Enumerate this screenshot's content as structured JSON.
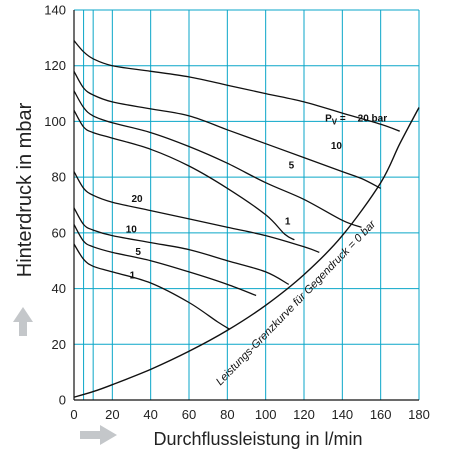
{
  "chart_data": {
    "type": "line",
    "xlabel": "Durchflussleistung in l/min",
    "ylabel": "Hinterdruck in mbar",
    "xlim": [
      0,
      180
    ],
    "ylim": [
      0,
      140
    ],
    "x_ticks": [
      "0",
      "20",
      "40",
      "60",
      "80",
      "100",
      "120",
      "140",
      "160",
      "180"
    ],
    "y_ticks": [
      "0",
      "20",
      "40",
      "60",
      "80",
      "100",
      "120",
      "140"
    ],
    "grid": true,
    "grid_color": "#0aa6c8",
    "line_color": "#111111",
    "arrow_color": "#c4c7ca",
    "boundary": {
      "label": "Leistungs-Grenzkurve für Gegendruck = 0 bar",
      "points": [
        [
          0,
          1
        ],
        [
          10,
          3
        ],
        [
          20,
          5.5
        ],
        [
          40,
          11
        ],
        [
          60,
          17.5
        ],
        [
          80,
          25
        ],
        [
          100,
          34
        ],
        [
          120,
          45
        ],
        [
          140,
          59
        ],
        [
          160,
          78
        ],
        [
          170,
          92
        ],
        [
          180,
          105
        ]
      ]
    },
    "series": [
      {
        "group": "upper",
        "points": [
          [
            0,
            129
          ],
          [
            5,
            125
          ],
          [
            10,
            122.5
          ],
          [
            20,
            120
          ],
          [
            40,
            118
          ],
          [
            60,
            116
          ],
          [
            80,
            113
          ],
          [
            100,
            110
          ],
          [
            120,
            107
          ],
          [
            140,
            103
          ],
          [
            160,
            99
          ],
          [
            170,
            96.5
          ]
        ]
      },
      {
        "group": "upper",
        "points": [
          [
            0,
            118
          ],
          [
            5,
            112
          ],
          [
            10,
            109.5
          ],
          [
            20,
            107
          ],
          [
            40,
            104.5
          ],
          [
            60,
            102
          ],
          [
            80,
            97
          ],
          [
            100,
            92
          ],
          [
            120,
            87
          ],
          [
            140,
            82
          ],
          [
            150,
            79.5
          ],
          [
            160,
            76
          ]
        ]
      },
      {
        "group": "upper",
        "points": [
          [
            0,
            111
          ],
          [
            5,
            105
          ],
          [
            10,
            102
          ],
          [
            20,
            99.5
          ],
          [
            40,
            96
          ],
          [
            60,
            91
          ],
          [
            80,
            85
          ],
          [
            100,
            78
          ],
          [
            120,
            72
          ],
          [
            140,
            64.5
          ],
          [
            150,
            62
          ]
        ]
      },
      {
        "group": "upper",
        "points": [
          [
            0,
            104
          ],
          [
            5,
            98
          ],
          [
            10,
            96
          ],
          [
            20,
            94
          ],
          [
            40,
            90
          ],
          [
            60,
            84
          ],
          [
            80,
            76
          ],
          [
            100,
            66.5
          ],
          [
            110,
            59.5
          ],
          [
            115,
            57.5
          ]
        ]
      },
      {
        "group": "lower",
        "points": [
          [
            0,
            82
          ],
          [
            5,
            76
          ],
          [
            10,
            73.5
          ],
          [
            20,
            71
          ],
          [
            40,
            68
          ],
          [
            60,
            65
          ],
          [
            80,
            62
          ],
          [
            100,
            59
          ],
          [
            120,
            55
          ],
          [
            128,
            53
          ]
        ]
      },
      {
        "group": "lower",
        "points": [
          [
            0,
            69
          ],
          [
            5,
            63
          ],
          [
            10,
            61
          ],
          [
            20,
            59
          ],
          [
            40,
            56.5
          ],
          [
            60,
            54
          ],
          [
            80,
            50
          ],
          [
            100,
            46
          ],
          [
            112,
            41.5
          ]
        ]
      },
      {
        "group": "lower",
        "points": [
          [
            0,
            63
          ],
          [
            5,
            57
          ],
          [
            10,
            55
          ],
          [
            20,
            53
          ],
          [
            40,
            50
          ],
          [
            60,
            46
          ],
          [
            80,
            41.5
          ],
          [
            95,
            37.5
          ]
        ]
      },
      {
        "group": "lower",
        "points": [
          [
            0,
            56
          ],
          [
            5,
            50.5
          ],
          [
            10,
            48
          ],
          [
            20,
            46
          ],
          [
            40,
            42
          ],
          [
            60,
            35
          ],
          [
            75,
            28
          ],
          [
            81,
            25.5
          ]
        ]
      }
    ],
    "labels": [
      {
        "text": "20 bar",
        "x": 148,
        "y": 101.5
      },
      {
        "text": "10",
        "x": 134,
        "y": 91.5
      },
      {
        "text": "5",
        "x": 112,
        "y": 84.5
      },
      {
        "text": "1",
        "x": 110,
        "y": 64.5
      },
      {
        "text": "20",
        "x": 30,
        "y": 72.5
      },
      {
        "text": "10",
        "x": 27,
        "y": 61.5
      },
      {
        "text": "5",
        "x": 32,
        "y": 53.5
      },
      {
        "text": "1",
        "x": 29,
        "y": 45
      }
    ],
    "pv_label": {
      "main": "P",
      "sub": "V",
      "suffix": " = ",
      "x": 131,
      "y": 101.5
    }
  }
}
